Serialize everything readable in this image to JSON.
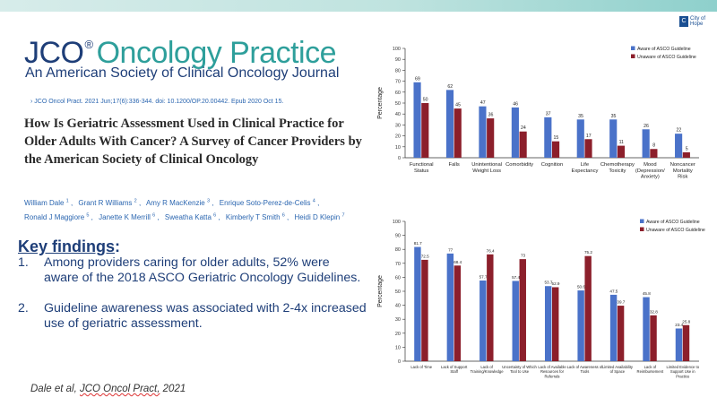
{
  "journal": {
    "brand_prefix": "JCO",
    "registered": "®",
    "brand_suffix": "Oncology Practice",
    "subtitle": "An American Society of Clinical Oncology Journal"
  },
  "logo": {
    "mark": "C",
    "name": "City of Hope"
  },
  "citation": "JCO Oncol Pract. 2021 Jun;17(6):336-344. doi: 10.1200/OP.20.00442. Epub 2020 Oct 15.",
  "article_title": "How Is Geriatric Assessment Used in Clinical Practice for Older Adults With Cancer? A Survey of Cancer Providers by the American Society of Clinical Oncology",
  "authors": [
    {
      "name": "William Dale",
      "sup": "1"
    },
    {
      "name": "Grant R Williams",
      "sup": "2"
    },
    {
      "name": "Amy R MacKenzie",
      "sup": "3"
    },
    {
      "name": "Enrique Soto-Perez-de-Celis",
      "sup": "4"
    },
    {
      "name": "Ronald J Maggiore",
      "sup": "5"
    },
    {
      "name": "Janette K Merrill",
      "sup": "6"
    },
    {
      "name": "Sweatha Katta",
      "sup": "6"
    },
    {
      "name": "Kimberly T Smith",
      "sup": "6"
    },
    {
      "name": "Heidi D Klepin",
      "sup": "7"
    }
  ],
  "key_findings": {
    "title": "Key findings",
    "colon": ":",
    "items": [
      {
        "num": "1.",
        "text": "Among providers caring for older adults, 52% were aware of the 2018 ASCO Geriatric Oncology Guidelines."
      },
      {
        "num": "2.",
        "text": "Guideline awareness was associated with 2-4x increased use of geriatric assessment."
      }
    ]
  },
  "footer": {
    "author": "Dale et al,",
    "journal": "JCO Oncol Pract,",
    "year": "2021"
  },
  "colors": {
    "aware": "#4a72c9",
    "unaware": "#8c1f2b",
    "navy": "#1e3e78",
    "teal": "#2e9f9b"
  },
  "chart_data": [
    {
      "type": "bar",
      "ylabel": "Percentage",
      "ylim": [
        0,
        100
      ],
      "yticks": [
        0,
        10,
        20,
        30,
        40,
        50,
        60,
        70,
        80,
        90,
        100
      ],
      "legend": "top-right",
      "categories": [
        "Functional Status",
        "Falls",
        "Unintentional Weight Loss",
        "Comorbidity",
        "Cognition",
        "Life Expectancy",
        "Chemotherapy Toxicity",
        "Mood (Depression/ Anxiety)",
        "Noncancer Mortality Risk"
      ],
      "series": [
        {
          "name": "Aware of ASCO Guideline",
          "values": [
            69,
            62,
            47,
            46,
            37,
            35,
            35,
            26,
            22
          ]
        },
        {
          "name": "Unaware of ASCO Guideline",
          "values": [
            50,
            45,
            36,
            24,
            15,
            17,
            11,
            8,
            5
          ]
        }
      ]
    },
    {
      "type": "bar",
      "ylabel": "Percentage",
      "ylim": [
        0,
        100
      ],
      "yticks": [
        0,
        10,
        20,
        30,
        40,
        50,
        60,
        70,
        80,
        90,
        100
      ],
      "legend": "top-right",
      "categories": [
        "Lack of Time",
        "Lack of Support Staff",
        "Lack of Training/Knowledge",
        "Uncertainty of Which Tool to Use",
        "Lack of Available Resources for Referrals",
        "Lack of Awareness of Tools",
        "Limited Availability of Space",
        "Lack of Reimbursement",
        "Limited Evidence to Support Use in Practice"
      ],
      "series": [
        {
          "name": "Aware of ASCO Guideline",
          "values": [
            81.7,
            77.0,
            57.7,
            57.4,
            53.7,
            50.6,
            47.5,
            45.8,
            23.4
          ]
        },
        {
          "name": "Unaware of ASCO Guideline",
          "values": [
            72.5,
            68.4,
            76.4,
            73.0,
            52.9,
            75.2,
            39.7,
            32.8,
            25.8
          ]
        }
      ]
    }
  ]
}
